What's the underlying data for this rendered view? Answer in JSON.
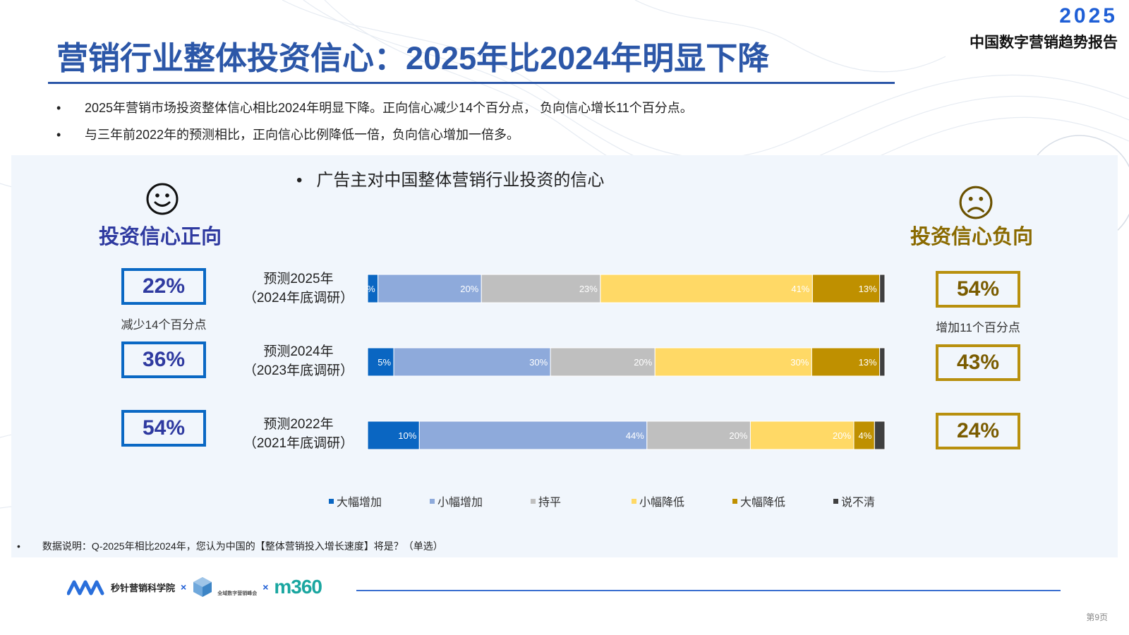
{
  "header": {
    "brand_year": "2025",
    "brand_subtitle": "中国数字营销趋势报告",
    "title": "营销行业整体投资信心：2025年比2024年明显下降"
  },
  "bullets": [
    "2025年营销市场投资整体信心相比2024年明显下降。正向信心减少14个百分点， 负向信心增长11个百分点。",
    "与三年前2022年的预测相比，正向信心比例降低一倍，负向信心增加一倍多。"
  ],
  "bullet_symbol": "•",
  "chart_title": "广告主对中国整体营销行业投资的信心",
  "positive": {
    "label": "投资信心正向",
    "icon": "smiley-face-icon",
    "values": [
      "22%",
      "36%",
      "54%"
    ],
    "note": "减少14个百分点",
    "color": "#2f3aa0"
  },
  "negative": {
    "label": "投资信心负向",
    "icon": "frowning-face-icon",
    "values": [
      "54%",
      "43%",
      "24%"
    ],
    "note": "增加11个百分点",
    "color": "#8a6a00"
  },
  "rows": [
    {
      "line1": "预测2025年",
      "line2": "（2024年底调研）"
    },
    {
      "line1": "预测2024年",
      "line2": "（2023年底调研）"
    },
    {
      "line1": "预测2022年",
      "line2": "（2021年底调研）"
    }
  ],
  "chart_data": {
    "type": "bar",
    "orientation": "horizontal",
    "stacked": true,
    "title": "广告主对中国整体营销行业投资的信心",
    "categories": [
      "预测2025年（2024年底调研）",
      "预测2024年（2023年底调研）",
      "预测2022年（2021年底调研）"
    ],
    "series": [
      {
        "name": "大幅增加",
        "color": "#0a66c2",
        "values": [
          2,
          5,
          10
        ],
        "labels": [
          "%",
          "5%",
          "10%"
        ]
      },
      {
        "name": "小幅增加",
        "color": "#8eaadb",
        "values": [
          20,
          30,
          44
        ],
        "labels": [
          "20%",
          "30%",
          "44%"
        ]
      },
      {
        "name": "持平",
        "color": "#bfbfbf",
        "values": [
          23,
          20,
          20
        ],
        "labels": [
          "23%",
          "20%",
          "20%"
        ]
      },
      {
        "name": "小幅降低",
        "color": "#ffd966",
        "values": [
          41,
          30,
          20
        ],
        "labels": [
          "41%",
          "30%",
          "20%"
        ]
      },
      {
        "name": "大幅降低",
        "color": "#bf9000",
        "values": [
          13,
          13,
          4
        ],
        "labels": [
          "13%",
          "13%",
          "4%"
        ]
      },
      {
        "name": "说不清",
        "color": "#404040",
        "values": [
          1,
          1,
          2
        ],
        "labels": [
          "",
          "",
          ""
        ]
      }
    ],
    "legend_position": "bottom",
    "grid": false
  },
  "footnote": "数据说明：Q-2025年相比2024年，您认为中国的【整体营销投入增长速度】将是？（单选）",
  "footer": {
    "logo1_text": "秒针营销科学院",
    "separator": "×",
    "logo2_text": "全域数字营销峰会",
    "logo3_text": "m360",
    "page_number": "第9页"
  }
}
